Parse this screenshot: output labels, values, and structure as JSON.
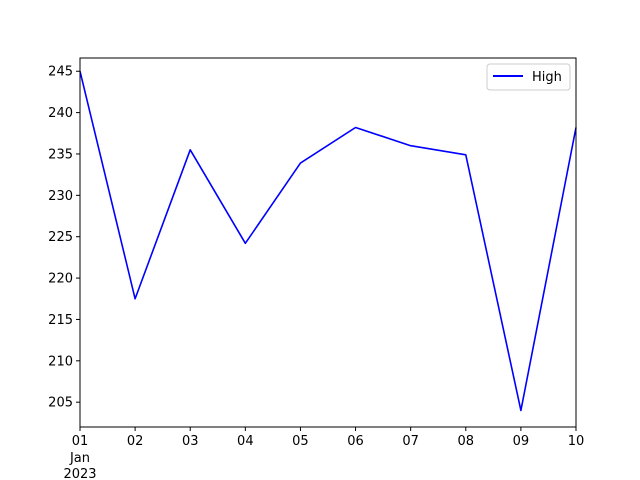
{
  "chart_data": {
    "type": "line",
    "title": "",
    "xlabel": "",
    "ylabel": "",
    "x": [
      "2023-01-01",
      "2023-01-02",
      "2023-01-03",
      "2023-01-04",
      "2023-01-05",
      "2023-01-06",
      "2023-01-07",
      "2023-01-08",
      "2023-01-09",
      "2023-01-10"
    ],
    "x_tick_labels": [
      "01",
      "02",
      "03",
      "04",
      "05",
      "06",
      "07",
      "08",
      "09",
      "10"
    ],
    "x_major_label": [
      "Jan",
      "2023"
    ],
    "xlim": [
      "2023-01-01",
      "2023-01-10"
    ],
    "y_ticks": [
      205,
      210,
      215,
      220,
      225,
      230,
      235,
      240,
      245
    ],
    "ylim": [
      202,
      246.6
    ],
    "series": [
      {
        "name": "High",
        "color": "#0000ff",
        "values": [
          245.0,
          217.5,
          235.5,
          224.2,
          233.9,
          238.2,
          236.0,
          234.9,
          204.0,
          238.2
        ]
      }
    ],
    "legend": {
      "placement": "upper-right"
    },
    "grid": false
  }
}
